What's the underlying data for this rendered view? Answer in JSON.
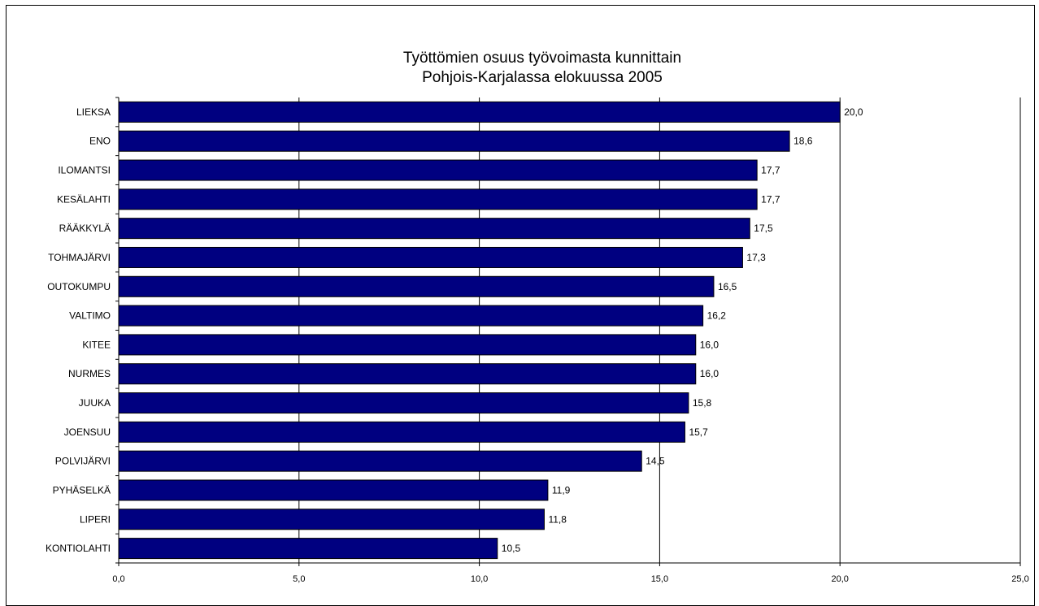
{
  "chart_data": {
    "type": "bar",
    "orientation": "horizontal",
    "title": [
      "Työttömien osuus työvoimasta kunnittain",
      "Pohjois-Karjalassa elokuussa 2005"
    ],
    "categories": [
      "LIEKSA",
      "ENO",
      "ILOMANTSI",
      "KESÄLAHTI",
      "RÄÄKKYLÄ",
      "TOHMAJÄRVI",
      "OUTOKUMPU",
      "VALTIMO",
      "KITEE",
      "NURMES",
      "JUUKA",
      "JOENSUU",
      "POLVIJÄRVI",
      "PYHÄSELKÄ",
      "LIPERI",
      "KONTIOLAHTI"
    ],
    "values": [
      20.0,
      18.6,
      17.7,
      17.7,
      17.5,
      17.3,
      16.5,
      16.2,
      16.0,
      16.0,
      15.8,
      15.7,
      14.5,
      11.9,
      11.8,
      10.5
    ],
    "value_labels": [
      "20,0",
      "18,6",
      "17,7",
      "17,7",
      "17,5",
      "17,3",
      "16,5",
      "16,2",
      "16,0",
      "16,0",
      "15,8",
      "15,7",
      "14,5",
      "11,9",
      "11,8",
      "10,5"
    ],
    "xlim": [
      0,
      25
    ],
    "x_ticks": [
      0,
      5,
      10,
      15,
      20,
      25
    ],
    "x_tick_labels": [
      "0,0",
      "5,0",
      "10,0",
      "15,0",
      "20,0",
      "25,0"
    ],
    "grid": "vertical",
    "legend": "none",
    "bar_color": "#000080"
  }
}
